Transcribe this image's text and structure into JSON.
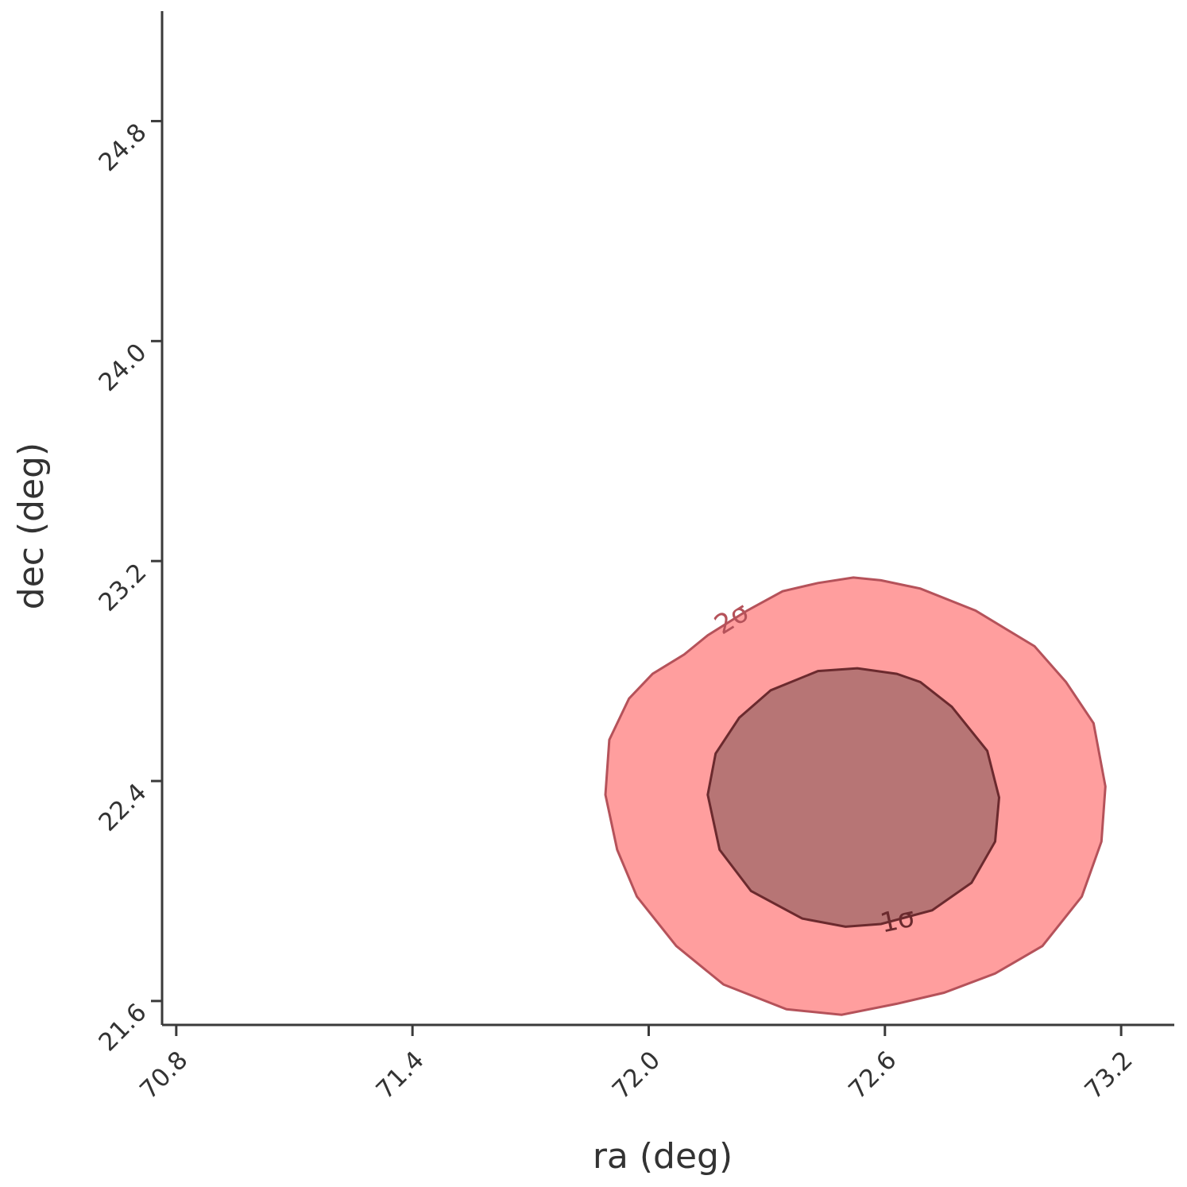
{
  "chart_data": {
    "type": "contour",
    "xlabel": "ra (deg)",
    "ylabel": "dec (deg)",
    "xlim": [
      70.764,
      73.335
    ],
    "ylim": [
      21.513,
      25.2
    ],
    "xticks": [
      70.8,
      71.4,
      {
        "value": 72,
        "label": "72.0"
      },
      72.6,
      73.2
    ],
    "yticks": [
      21.6,
      22.4,
      23.2,
      {
        "value": 24,
        "label": "24.0"
      },
      24.8
    ],
    "series": [
      {
        "name": "2σ",
        "color": "#ff9e9e",
        "edge": "#b5525a",
        "x": [
          71.89,
          71.9,
          71.95,
          72.01,
          72.09,
          72.15,
          72.25,
          72.34,
          72.43,
          72.52,
          72.59,
          72.69,
          72.83,
          72.98,
          73.06,
          73.13,
          73.16,
          73.15,
          73.1,
          73.0,
          72.88,
          72.75,
          72.63,
          72.49,
          72.35,
          72.19,
          72.07,
          71.97,
          71.92
        ],
        "y": [
          22.35,
          22.55,
          22.7,
          22.79,
          22.86,
          22.93,
          23.02,
          23.09,
          23.12,
          23.14,
          23.13,
          23.1,
          23.02,
          22.89,
          22.76,
          22.61,
          22.38,
          22.18,
          21.98,
          21.8,
          21.7,
          21.63,
          21.59,
          21.55,
          21.57,
          21.66,
          21.8,
          21.98,
          22.15
        ]
      },
      {
        "name": "1σ",
        "color": "#b77575",
        "edge": "#6b2a2e",
        "x": [
          72.15,
          72.17,
          72.23,
          72.31,
          72.43,
          72.53,
          72.63,
          72.69,
          72.77,
          72.86,
          72.89,
          72.88,
          72.82,
          72.72,
          72.59,
          72.5,
          72.39,
          72.26,
          72.18
        ],
        "y": [
          22.35,
          22.5,
          22.63,
          22.73,
          22.8,
          22.81,
          22.79,
          22.76,
          22.67,
          22.51,
          22.34,
          22.18,
          22.03,
          21.93,
          21.88,
          21.87,
          21.9,
          22.0,
          22.15
        ]
      }
    ]
  }
}
